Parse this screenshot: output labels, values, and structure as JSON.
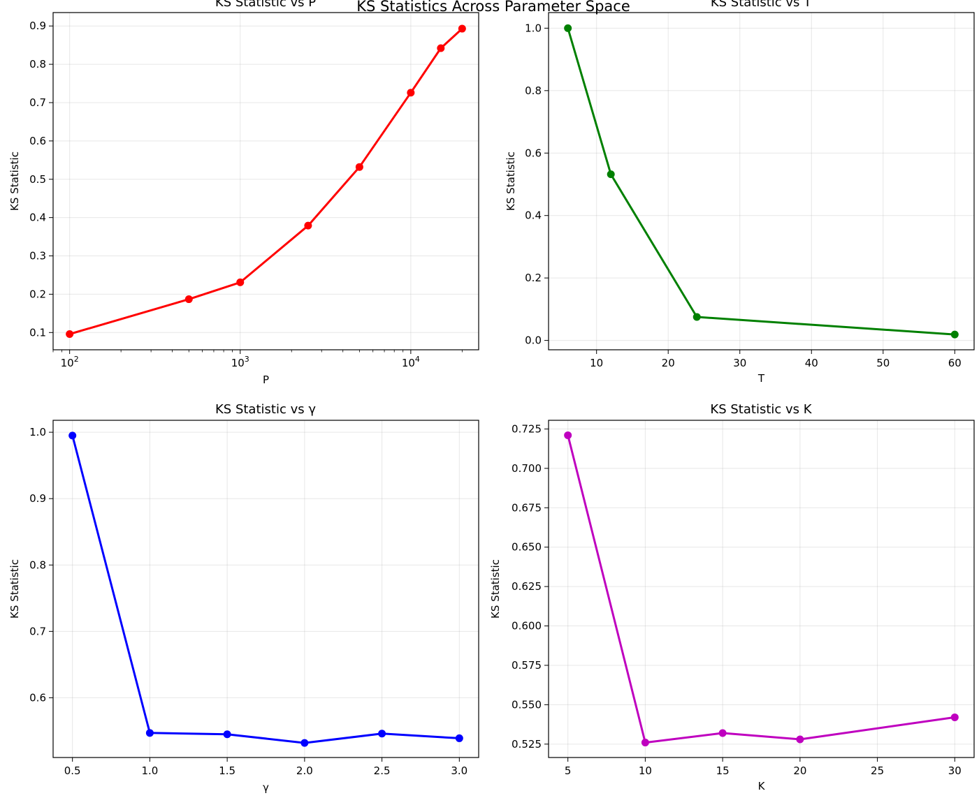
{
  "figure": {
    "title": "KS Statistics Across Parameter Space"
  },
  "chart_data": [
    {
      "type": "line",
      "title": "KS Statistic vs P",
      "xlabel": "P",
      "ylabel": "KS Statistic",
      "xscale": "log",
      "xlim": [
        80,
        25000
      ],
      "ylim": [
        0.055,
        0.935
      ],
      "x": [
        100,
        500,
        1000,
        2500,
        5000,
        10000,
        15000,
        20000
      ],
      "y": [
        0.096,
        0.187,
        0.231,
        0.379,
        0.532,
        0.726,
        0.842,
        0.893
      ],
      "xticks": [
        100,
        1000,
        10000
      ],
      "xtick_labels": [
        {
          "base": "10",
          "exp": "2"
        },
        {
          "base": "10",
          "exp": "3"
        },
        {
          "base": "10",
          "exp": "4"
        }
      ],
      "yticks": [
        0.1,
        0.2,
        0.3,
        0.4,
        0.5,
        0.6,
        0.7,
        0.8,
        0.9
      ],
      "ytick_labels": [
        "0.1",
        "0.2",
        "0.3",
        "0.4",
        "0.5",
        "0.6",
        "0.7",
        "0.8",
        "0.9"
      ],
      "color": "#ff0000",
      "grid": true
    },
    {
      "type": "line",
      "title": "KS Statistic vs T",
      "xlabel": "T",
      "ylabel": "KS Statistic",
      "xscale": "linear",
      "xlim": [
        3.3,
        62.7
      ],
      "ylim": [
        -0.03,
        1.05
      ],
      "x": [
        6,
        12,
        24,
        60
      ],
      "y": [
        1.0,
        0.532,
        0.075,
        0.019
      ],
      "xticks": [
        10,
        20,
        30,
        40,
        50,
        60
      ],
      "xtick_labels": [
        "10",
        "20",
        "30",
        "40",
        "50",
        "60"
      ],
      "yticks": [
        0.0,
        0.2,
        0.4,
        0.6,
        0.8,
        1.0
      ],
      "ytick_labels": [
        "0.0",
        "0.2",
        "0.4",
        "0.6",
        "0.8",
        "1.0"
      ],
      "color": "#008000",
      "grid": true
    },
    {
      "type": "line",
      "title": "KS Statistic vs γ",
      "xlabel": "γ",
      "ylabel": "KS Statistic",
      "xscale": "linear",
      "xlim": [
        0.375,
        3.125
      ],
      "ylim": [
        0.51,
        1.018
      ],
      "x": [
        0.5,
        1.0,
        1.5,
        2.0,
        2.5,
        3.0
      ],
      "y": [
        0.995,
        0.547,
        0.545,
        0.532,
        0.546,
        0.539
      ],
      "xticks": [
        0.5,
        1.0,
        1.5,
        2.0,
        2.5,
        3.0
      ],
      "xtick_labels": [
        "0.5",
        "1.0",
        "1.5",
        "2.0",
        "2.5",
        "3.0"
      ],
      "yticks": [
        0.6,
        0.7,
        0.8,
        0.9,
        1.0
      ],
      "ytick_labels": [
        "0.6",
        "0.7",
        "0.8",
        "0.9",
        "1.0"
      ],
      "color": "#0000ff",
      "grid": true
    },
    {
      "type": "line",
      "title": "KS Statistic vs K",
      "xlabel": "K",
      "ylabel": "KS Statistic",
      "xscale": "linear",
      "xlim": [
        3.75,
        31.25
      ],
      "ylim": [
        0.5165,
        0.7305
      ],
      "x": [
        5,
        10,
        15,
        20,
        30
      ],
      "y": [
        0.721,
        0.526,
        0.532,
        0.528,
        0.542
      ],
      "xticks": [
        5,
        10,
        15,
        20,
        25,
        30
      ],
      "xtick_labels": [
        "5",
        "10",
        "15",
        "20",
        "25",
        "30"
      ],
      "yticks": [
        0.525,
        0.55,
        0.575,
        0.6,
        0.625,
        0.65,
        0.675,
        0.7,
        0.725
      ],
      "ytick_labels": [
        "0.525",
        "0.550",
        "0.575",
        "0.600",
        "0.625",
        "0.650",
        "0.675",
        "0.700",
        "0.725"
      ],
      "color": "#bf00bf",
      "grid": true
    }
  ]
}
